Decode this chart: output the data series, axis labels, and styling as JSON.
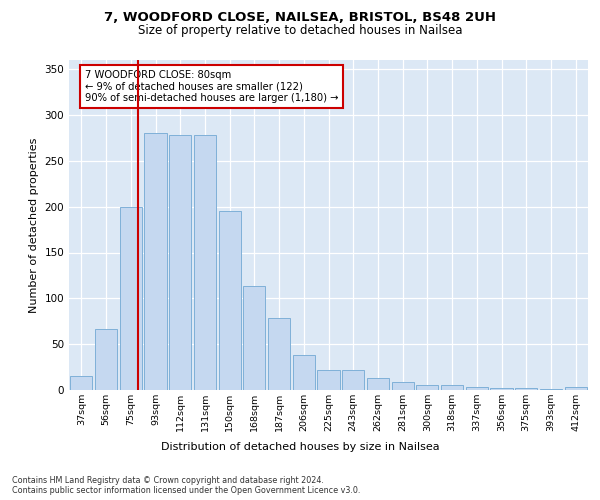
{
  "title1": "7, WOODFORD CLOSE, NAILSEA, BRISTOL, BS48 2UH",
  "title2": "Size of property relative to detached houses in Nailsea",
  "xlabel": "Distribution of detached houses by size in Nailsea",
  "ylabel": "Number of detached properties",
  "categories": [
    "37sqm",
    "56sqm",
    "75sqm",
    "93sqm",
    "112sqm",
    "131sqm",
    "150sqm",
    "168sqm",
    "187sqm",
    "206sqm",
    "225sqm",
    "243sqm",
    "262sqm",
    "281sqm",
    "300sqm",
    "318sqm",
    "337sqm",
    "356sqm",
    "375sqm",
    "393sqm",
    "412sqm"
  ],
  "values": [
    15,
    67,
    200,
    280,
    278,
    278,
    195,
    113,
    79,
    38,
    22,
    22,
    13,
    9,
    6,
    6,
    3,
    2,
    2,
    1,
    3
  ],
  "bar_color": "#c5d8f0",
  "bar_edge_color": "#7fb0d8",
  "vline_color": "#cc0000",
  "annotation_text": "7 WOODFORD CLOSE: 80sqm\n← 9% of detached houses are smaller (122)\n90% of semi-detached houses are larger (1,180) →",
  "annotation_box_color": "#ffffff",
  "annotation_box_edge": "#cc0000",
  "ylim": [
    0,
    360
  ],
  "yticks": [
    0,
    50,
    100,
    150,
    200,
    250,
    300,
    350
  ],
  "background_color": "#dce8f5",
  "footnote": "Contains HM Land Registry data © Crown copyright and database right 2024.\nContains public sector information licensed under the Open Government Licence v3.0."
}
